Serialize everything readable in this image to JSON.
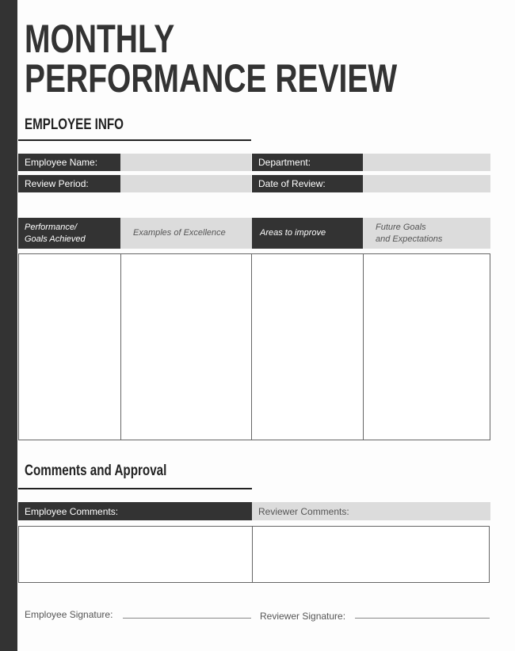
{
  "title": {
    "line1": "MONTHLY",
    "line2": "PERFORMANCE REVIEW"
  },
  "employee_info": {
    "heading": "EMPLOYEE INFO",
    "fields": [
      {
        "label": "Employee Name:",
        "value": ""
      },
      {
        "label": "Department:",
        "value": ""
      },
      {
        "label": "Review Period:",
        "value": ""
      },
      {
        "label": "Date of Review:",
        "value": ""
      }
    ]
  },
  "review_table": {
    "columns": [
      {
        "line1": "Performance/",
        "line2": "Goals Achieved"
      },
      {
        "line1": "Examples of Excellence",
        "line2": ""
      },
      {
        "line1": "Areas to improve",
        "line2": ""
      },
      {
        "line1": "Future Goals",
        "line2": "and Expectations"
      }
    ]
  },
  "comments": {
    "heading": "Comments and Approval",
    "employee_label": "Employee Comments:",
    "reviewer_label": "Reviewer Comments:",
    "employee_signature": "Employee Signature:",
    "reviewer_signature": "Reviewer Signature:"
  },
  "colors": {
    "dark": "#333333",
    "light": "#dcdcdc"
  }
}
